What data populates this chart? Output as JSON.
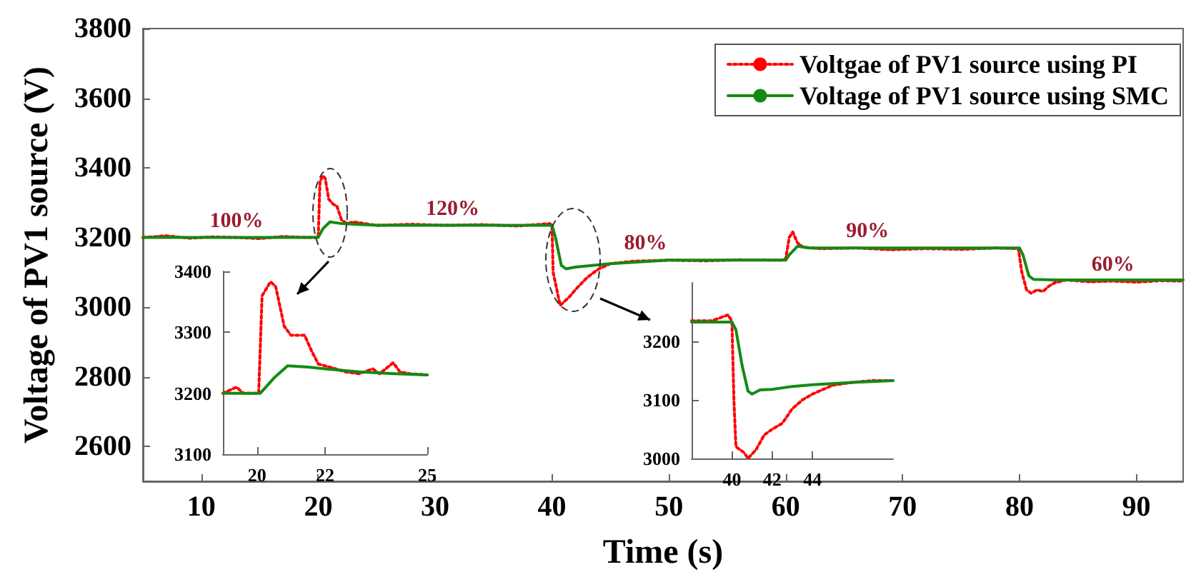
{
  "chart_data": [
    {
      "type": "line",
      "xlabel": "Time (s)",
      "ylabel": "Voltage of PV1 source (V)",
      "xlim": [
        5,
        94
      ],
      "xticks": [
        10,
        20,
        30,
        40,
        50,
        60,
        70,
        80,
        90
      ],
      "ylim": [
        2500,
        3800
      ],
      "yticks": [
        2600,
        2800,
        3000,
        3200,
        3400,
        3600,
        3800
      ],
      "grid": false,
      "legend": "top right",
      "marker": "none",
      "annotations": [
        {
          "text": "100%",
          "x": 13,
          "y": 3200
        },
        {
          "text": "120%",
          "x": 31.5,
          "y": 3235
        },
        {
          "text": "80%",
          "x": 48,
          "y": 3135
        },
        {
          "text": "90%",
          "x": 67,
          "y": 3170
        },
        {
          "text": "60%",
          "x": 88,
          "y": 3075
        }
      ],
      "series": [
        {
          "name": "Voltgae of PV1 source using PI",
          "color": "#ff0000",
          "line_style": "dotted",
          "x": [
            5,
            7,
            9,
            11,
            13,
            15,
            17,
            19,
            20,
            20.15,
            20.4,
            20.6,
            20.9,
            21.3,
            21.6,
            22,
            22.5,
            23,
            25,
            28,
            31,
            34,
            37,
            39.8,
            40,
            40.1,
            40.7,
            41.5,
            42,
            43,
            44,
            45,
            47,
            50,
            53,
            56,
            59.8,
            60,
            60.3,
            60.6,
            61,
            61.5,
            63,
            66,
            69,
            72,
            75,
            78,
            79.9,
            80.2,
            80.6,
            81,
            81.5,
            82,
            82.5,
            83,
            84,
            86,
            88,
            90,
            92,
            94
          ],
          "values": [
            3200,
            3205,
            3198,
            3202,
            3200,
            3197,
            3203,
            3200,
            3200,
            3360,
            3378,
            3370,
            3310,
            3295,
            3290,
            3250,
            3240,
            3245,
            3235,
            3238,
            3235,
            3237,
            3233,
            3240,
            3235,
            3100,
            3005,
            3030,
            3050,
            3085,
            3110,
            3125,
            3132,
            3135,
            3133,
            3136,
            3135,
            3140,
            3200,
            3216,
            3185,
            3172,
            3168,
            3170,
            3165,
            3168,
            3166,
            3170,
            3168,
            3100,
            3050,
            3040,
            3050,
            3045,
            3060,
            3070,
            3078,
            3073,
            3075,
            3072,
            3076,
            3075
          ]
        },
        {
          "name": "Voltage of PV1 source using SMC",
          "color": "#138a13",
          "line_style": "solid",
          "x": [
            5,
            20,
            20.4,
            21,
            22,
            25,
            40,
            40.3,
            40.8,
            41.2,
            42,
            45,
            50,
            60,
            60.3,
            61,
            62,
            80,
            80.3,
            80.8,
            81.2,
            83,
            94
          ],
          "values": [
            3200,
            3200,
            3225,
            3245,
            3240,
            3235,
            3235,
            3200,
            3120,
            3110,
            3115,
            3125,
            3135,
            3135,
            3150,
            3175,
            3170,
            3170,
            3150,
            3090,
            3080,
            3078,
            3078
          ]
        }
      ]
    },
    {
      "type": "line",
      "xlim": [
        19,
        25
      ],
      "xticks": [
        20,
        22,
        25
      ],
      "ylim": [
        3100,
        3400
      ],
      "yticks": [
        3100,
        3200,
        3300,
        3400
      ],
      "grid": false,
      "legend": false,
      "marker": "none",
      "series": [
        {
          "color": "#ff0000",
          "line_style": "dotted",
          "x": [
            19,
            19.4,
            19.6,
            20.05,
            20.15,
            20.4,
            20.55,
            20.8,
            21,
            21.4,
            21.6,
            21.8,
            22.2,
            22.6,
            23,
            23.4,
            23.6,
            24,
            24.2,
            24.5,
            25
          ],
          "values": [
            3200,
            3210,
            3200,
            3200,
            3360,
            3383,
            3375,
            3310,
            3295,
            3295,
            3270,
            3248,
            3242,
            3235,
            3232,
            3240,
            3232,
            3250,
            3235,
            3232,
            3230
          ]
        },
        {
          "color": "#138a13",
          "line_style": "solid",
          "x": [
            19,
            20.1,
            20.5,
            20.9,
            21.5,
            22,
            23,
            24,
            25
          ],
          "values": [
            3200,
            3200,
            3225,
            3245,
            3243,
            3240,
            3235,
            3232,
            3230
          ]
        }
      ]
    },
    {
      "type": "line",
      "xlim": [
        38,
        48
      ],
      "xticks": [
        40,
        42,
        44
      ],
      "ylim": [
        3000,
        3300
      ],
      "yticks": [
        3000,
        3100,
        3200
      ],
      "grid": false,
      "legend": false,
      "marker": "none",
      "series": [
        {
          "color": "#ff0000",
          "line_style": "dotted",
          "x": [
            38,
            39,
            39.8,
            40,
            40.1,
            40.2,
            40.6,
            40.8,
            41.2,
            41.6,
            42,
            42.5,
            43,
            43.5,
            44,
            45,
            46,
            47,
            48
          ],
          "values": [
            3235,
            3235,
            3245,
            3235,
            3100,
            3020,
            3010,
            3000,
            3015,
            3040,
            3050,
            3060,
            3085,
            3100,
            3110,
            3125,
            3130,
            3133,
            3133
          ]
        },
        {
          "color": "#138a13",
          "line_style": "solid",
          "x": [
            38,
            40,
            40.2,
            40.5,
            40.8,
            41,
            41.4,
            42,
            43,
            44,
            46,
            48
          ],
          "values": [
            3233,
            3233,
            3220,
            3160,
            3115,
            3110,
            3117,
            3118,
            3123,
            3126,
            3130,
            3133
          ]
        }
      ]
    }
  ]
}
